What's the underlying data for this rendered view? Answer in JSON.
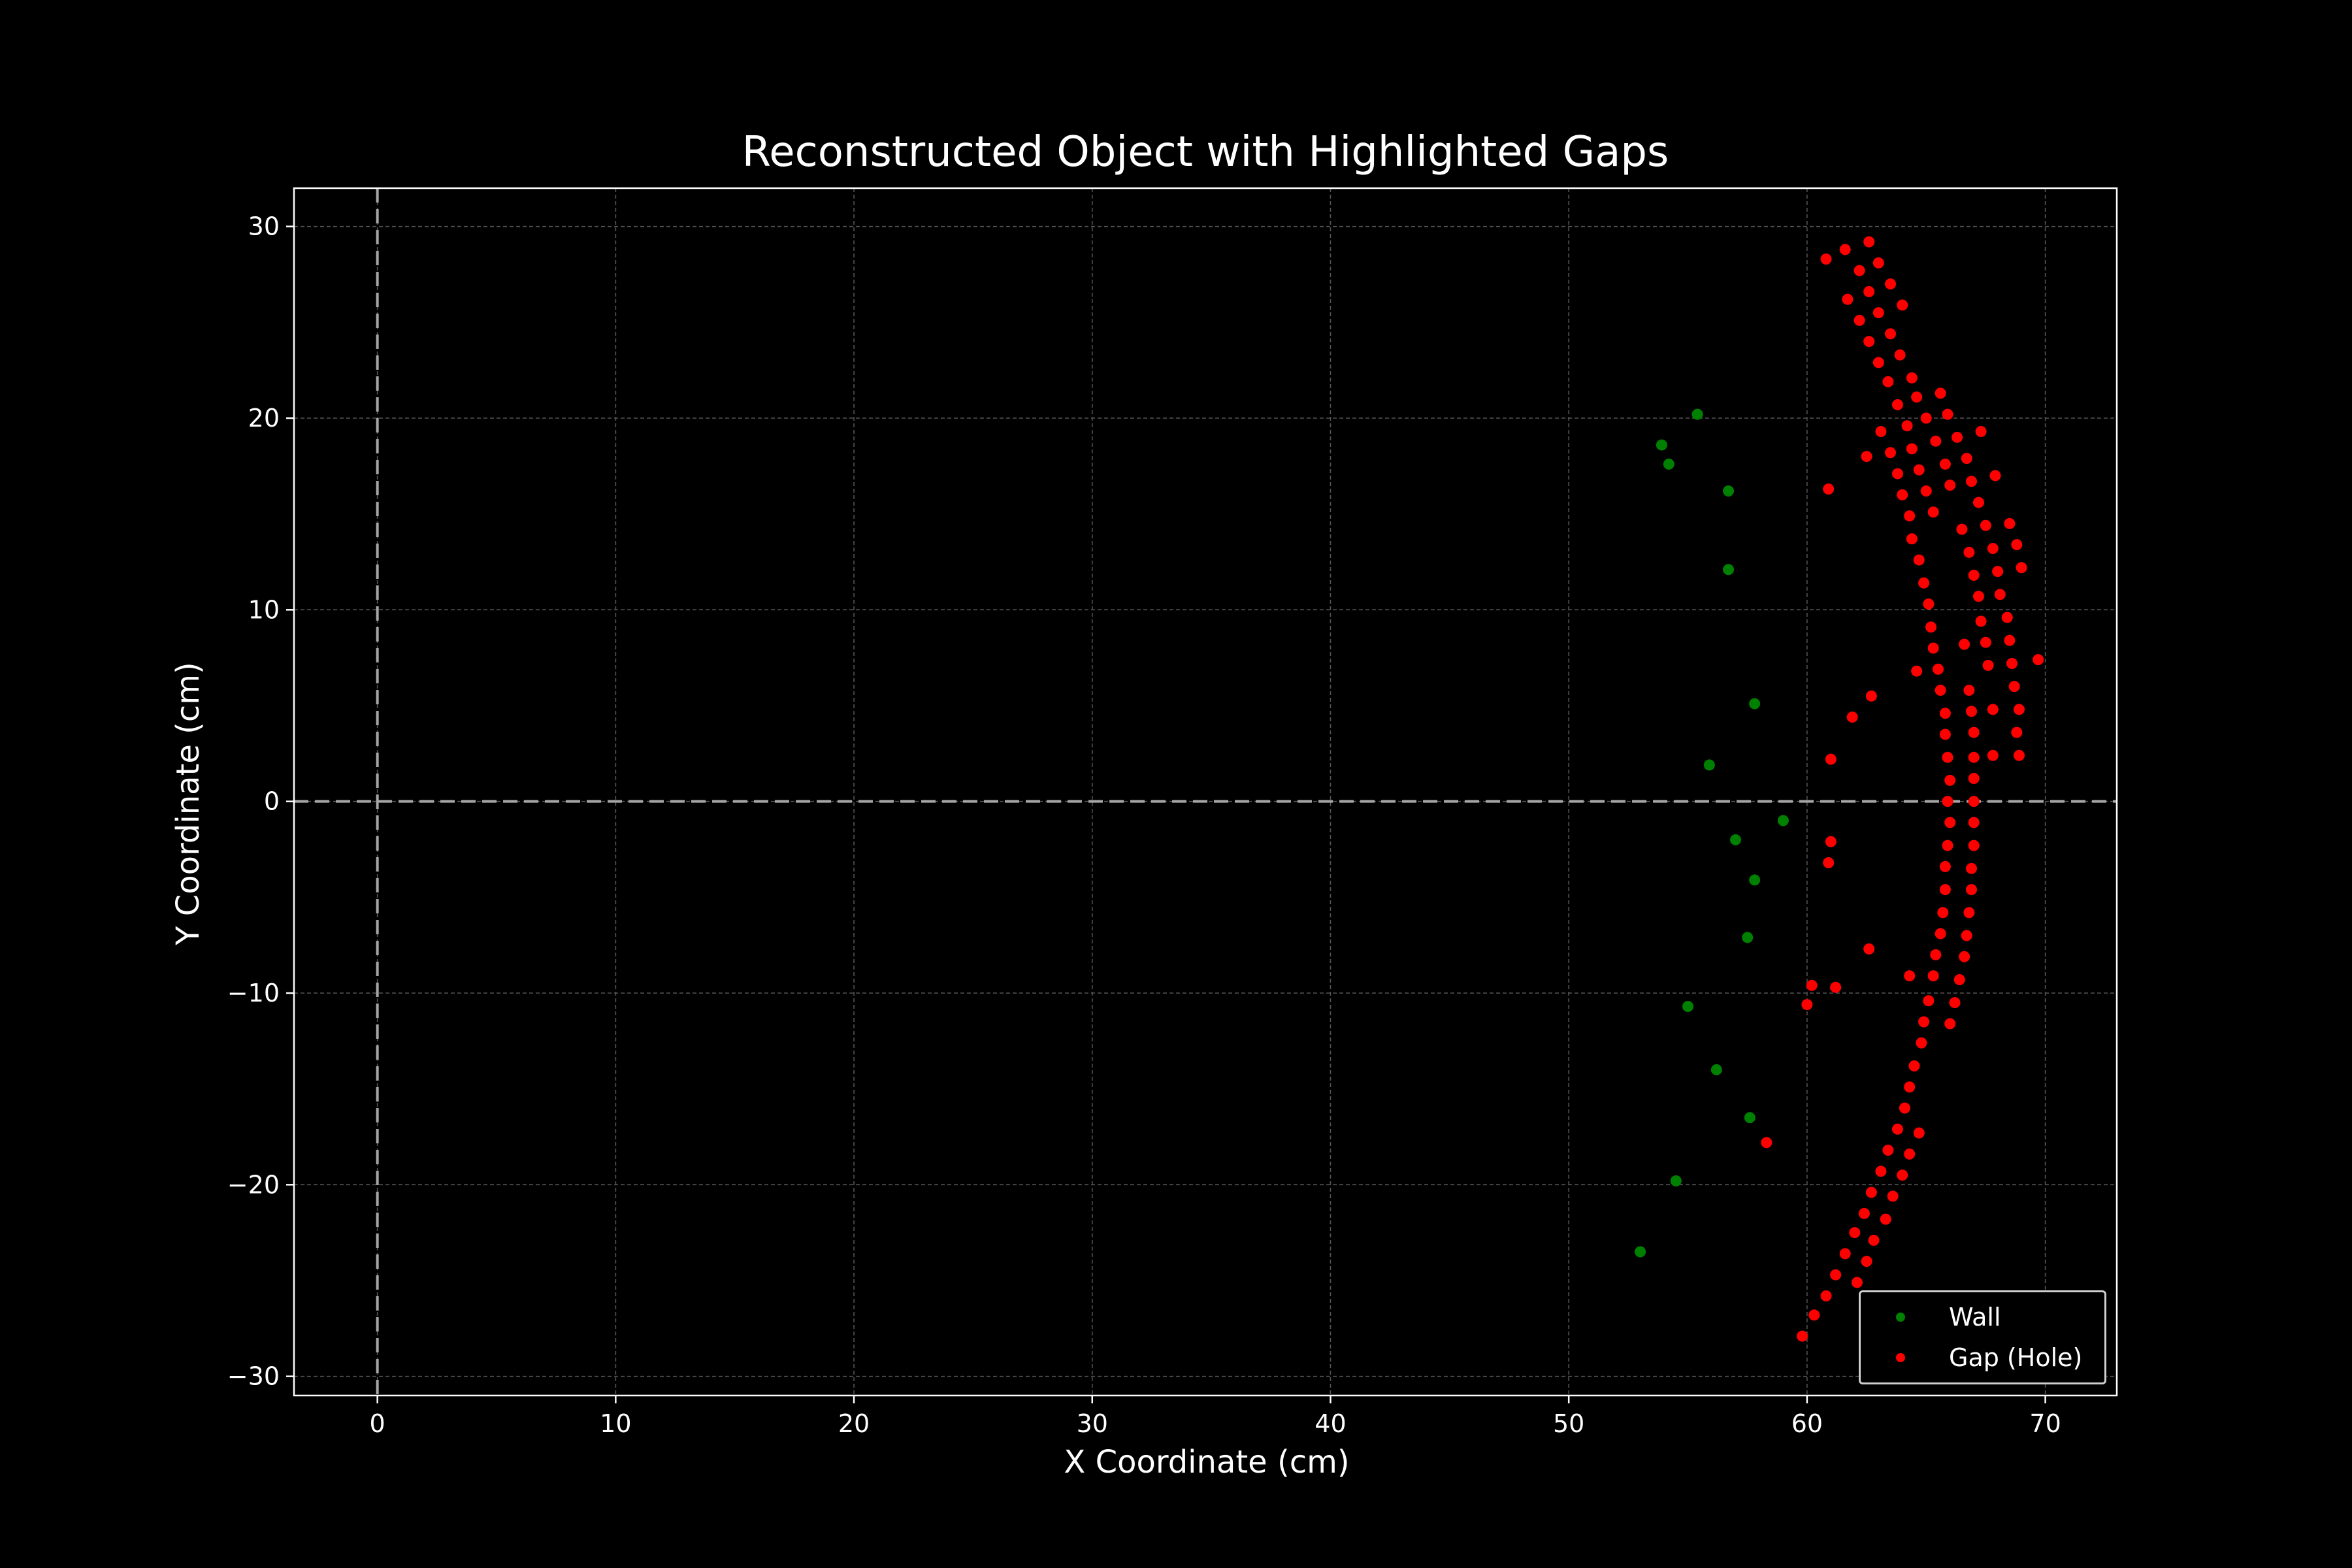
{
  "chart_data": {
    "type": "scatter",
    "title": "Reconstructed Object with Highlighted Gaps",
    "xlabel": "X Coordinate (cm)",
    "ylabel": "Y Coordinate (cm)",
    "xlim": [
      -3.5,
      73
    ],
    "ylim": [
      -31,
      32
    ],
    "xticks": [
      0,
      10,
      20,
      30,
      40,
      50,
      60,
      70
    ],
    "yticks": [
      -30,
      -20,
      -10,
      0,
      10,
      20,
      30
    ],
    "grid": true,
    "reference_lines": {
      "x": 0,
      "y": 0
    },
    "legend_position": "lower-right",
    "series": [
      {
        "name": "Wall",
        "color": "#008000",
        "points": [
          [
            55.4,
            20.2
          ],
          [
            53.9,
            18.6
          ],
          [
            54.2,
            17.6
          ],
          [
            56.7,
            16.2
          ],
          [
            56.7,
            12.1
          ],
          [
            57.8,
            5.1
          ],
          [
            55.9,
            1.9
          ],
          [
            59.0,
            -1.0
          ],
          [
            57.0,
            -2.0
          ],
          [
            57.8,
            -4.1
          ],
          [
            57.5,
            -7.1
          ],
          [
            55.0,
            -10.7
          ],
          [
            56.2,
            -14.0
          ],
          [
            57.6,
            -16.5
          ],
          [
            54.5,
            -19.8
          ],
          [
            53.0,
            -23.5
          ]
        ]
      },
      {
        "name": "Gap (Hole)",
        "color": "#ff0000",
        "points": [
          [
            62.6,
            29.2
          ],
          [
            61.6,
            28.8
          ],
          [
            60.8,
            28.3
          ],
          [
            63.0,
            28.1
          ],
          [
            62.2,
            27.7
          ],
          [
            63.5,
            27.0
          ],
          [
            62.6,
            26.6
          ],
          [
            61.7,
            26.2
          ],
          [
            64.0,
            25.9
          ],
          [
            63.0,
            25.5
          ],
          [
            62.2,
            25.1
          ],
          [
            63.5,
            24.4
          ],
          [
            62.6,
            24.0
          ],
          [
            63.9,
            23.3
          ],
          [
            63.0,
            22.9
          ],
          [
            64.4,
            22.1
          ],
          [
            65.6,
            21.3
          ],
          [
            63.4,
            21.9
          ],
          [
            64.6,
            21.1
          ],
          [
            63.8,
            20.7
          ],
          [
            65.9,
            20.2
          ],
          [
            65.0,
            20.0
          ],
          [
            64.2,
            19.6
          ],
          [
            63.1,
            19.3
          ],
          [
            67.3,
            19.3
          ],
          [
            66.3,
            19.0
          ],
          [
            65.4,
            18.8
          ],
          [
            64.4,
            18.4
          ],
          [
            63.5,
            18.2
          ],
          [
            62.5,
            18.0
          ],
          [
            66.7,
            17.9
          ],
          [
            65.8,
            17.6
          ],
          [
            64.7,
            17.3
          ],
          [
            63.8,
            17.1
          ],
          [
            67.9,
            17.0
          ],
          [
            66.9,
            16.7
          ],
          [
            66.0,
            16.5
          ],
          [
            65.0,
            16.2
          ],
          [
            64.0,
            16.0
          ],
          [
            60.9,
            16.3
          ],
          [
            67.2,
            15.6
          ],
          [
            65.3,
            15.1
          ],
          [
            64.3,
            14.9
          ],
          [
            68.5,
            14.5
          ],
          [
            67.5,
            14.4
          ],
          [
            66.5,
            14.2
          ],
          [
            64.4,
            13.7
          ],
          [
            68.8,
            13.4
          ],
          [
            67.8,
            13.2
          ],
          [
            66.8,
            13.0
          ],
          [
            64.7,
            12.6
          ],
          [
            69.0,
            12.2
          ],
          [
            68.0,
            12.0
          ],
          [
            67.0,
            11.8
          ],
          [
            64.9,
            11.4
          ],
          [
            68.1,
            10.8
          ],
          [
            67.2,
            10.7
          ],
          [
            65.1,
            10.3
          ],
          [
            68.4,
            9.6
          ],
          [
            67.3,
            9.4
          ],
          [
            65.2,
            9.1
          ],
          [
            68.5,
            8.4
          ],
          [
            67.5,
            8.3
          ],
          [
            66.6,
            8.2
          ],
          [
            65.3,
            8.0
          ],
          [
            69.7,
            7.4
          ],
          [
            68.6,
            7.2
          ],
          [
            67.6,
            7.1
          ],
          [
            65.5,
            6.9
          ],
          [
            64.6,
            6.8
          ],
          [
            68.7,
            6.0
          ],
          [
            66.8,
            5.8
          ],
          [
            65.6,
            5.8
          ],
          [
            62.7,
            5.5
          ],
          [
            68.9,
            4.8
          ],
          [
            67.8,
            4.8
          ],
          [
            66.9,
            4.7
          ],
          [
            65.8,
            4.6
          ],
          [
            61.9,
            4.4
          ],
          [
            68.8,
            3.6
          ],
          [
            67.0,
            3.6
          ],
          [
            65.8,
            3.5
          ],
          [
            68.9,
            2.4
          ],
          [
            67.8,
            2.4
          ],
          [
            67.0,
            2.3
          ],
          [
            65.9,
            2.3
          ],
          [
            61.0,
            2.2
          ],
          [
            67.0,
            1.2
          ],
          [
            66.0,
            1.1
          ],
          [
            67.0,
            0.0
          ],
          [
            65.9,
            0.0
          ],
          [
            67.0,
            -1.1
          ],
          [
            66.0,
            -1.1
          ],
          [
            61.0,
            -2.1
          ],
          [
            67.0,
            -2.3
          ],
          [
            65.9,
            -2.3
          ],
          [
            60.9,
            -3.2
          ],
          [
            66.9,
            -3.5
          ],
          [
            65.8,
            -3.4
          ],
          [
            66.9,
            -4.6
          ],
          [
            65.8,
            -4.6
          ],
          [
            66.8,
            -5.8
          ],
          [
            65.7,
            -5.8
          ],
          [
            66.7,
            -7.0
          ],
          [
            65.6,
            -6.9
          ],
          [
            62.6,
            -7.7
          ],
          [
            66.6,
            -8.1
          ],
          [
            65.4,
            -8.0
          ],
          [
            66.4,
            -9.3
          ],
          [
            65.3,
            -9.1
          ],
          [
            64.3,
            -9.1
          ],
          [
            60.2,
            -9.6
          ],
          [
            61.2,
            -9.7
          ],
          [
            66.2,
            -10.5
          ],
          [
            65.1,
            -10.4
          ],
          [
            60.0,
            -10.6
          ],
          [
            66.0,
            -11.6
          ],
          [
            64.9,
            -11.5
          ],
          [
            64.8,
            -12.6
          ],
          [
            64.5,
            -13.8
          ],
          [
            64.3,
            -14.9
          ],
          [
            64.1,
            -16.0
          ],
          [
            63.8,
            -17.1
          ],
          [
            64.7,
            -17.3
          ],
          [
            58.3,
            -17.8
          ],
          [
            63.4,
            -18.2
          ],
          [
            64.3,
            -18.4
          ],
          [
            63.1,
            -19.3
          ],
          [
            64.0,
            -19.5
          ],
          [
            62.7,
            -20.4
          ],
          [
            63.6,
            -20.6
          ],
          [
            62.4,
            -21.5
          ],
          [
            63.3,
            -21.8
          ],
          [
            62.0,
            -22.5
          ],
          [
            62.8,
            -22.9
          ],
          [
            61.6,
            -23.6
          ],
          [
            62.5,
            -24.0
          ],
          [
            61.2,
            -24.7
          ],
          [
            62.1,
            -25.1
          ],
          [
            60.8,
            -25.8
          ],
          [
            60.3,
            -26.8
          ],
          [
            59.8,
            -27.9
          ]
        ]
      }
    ]
  }
}
